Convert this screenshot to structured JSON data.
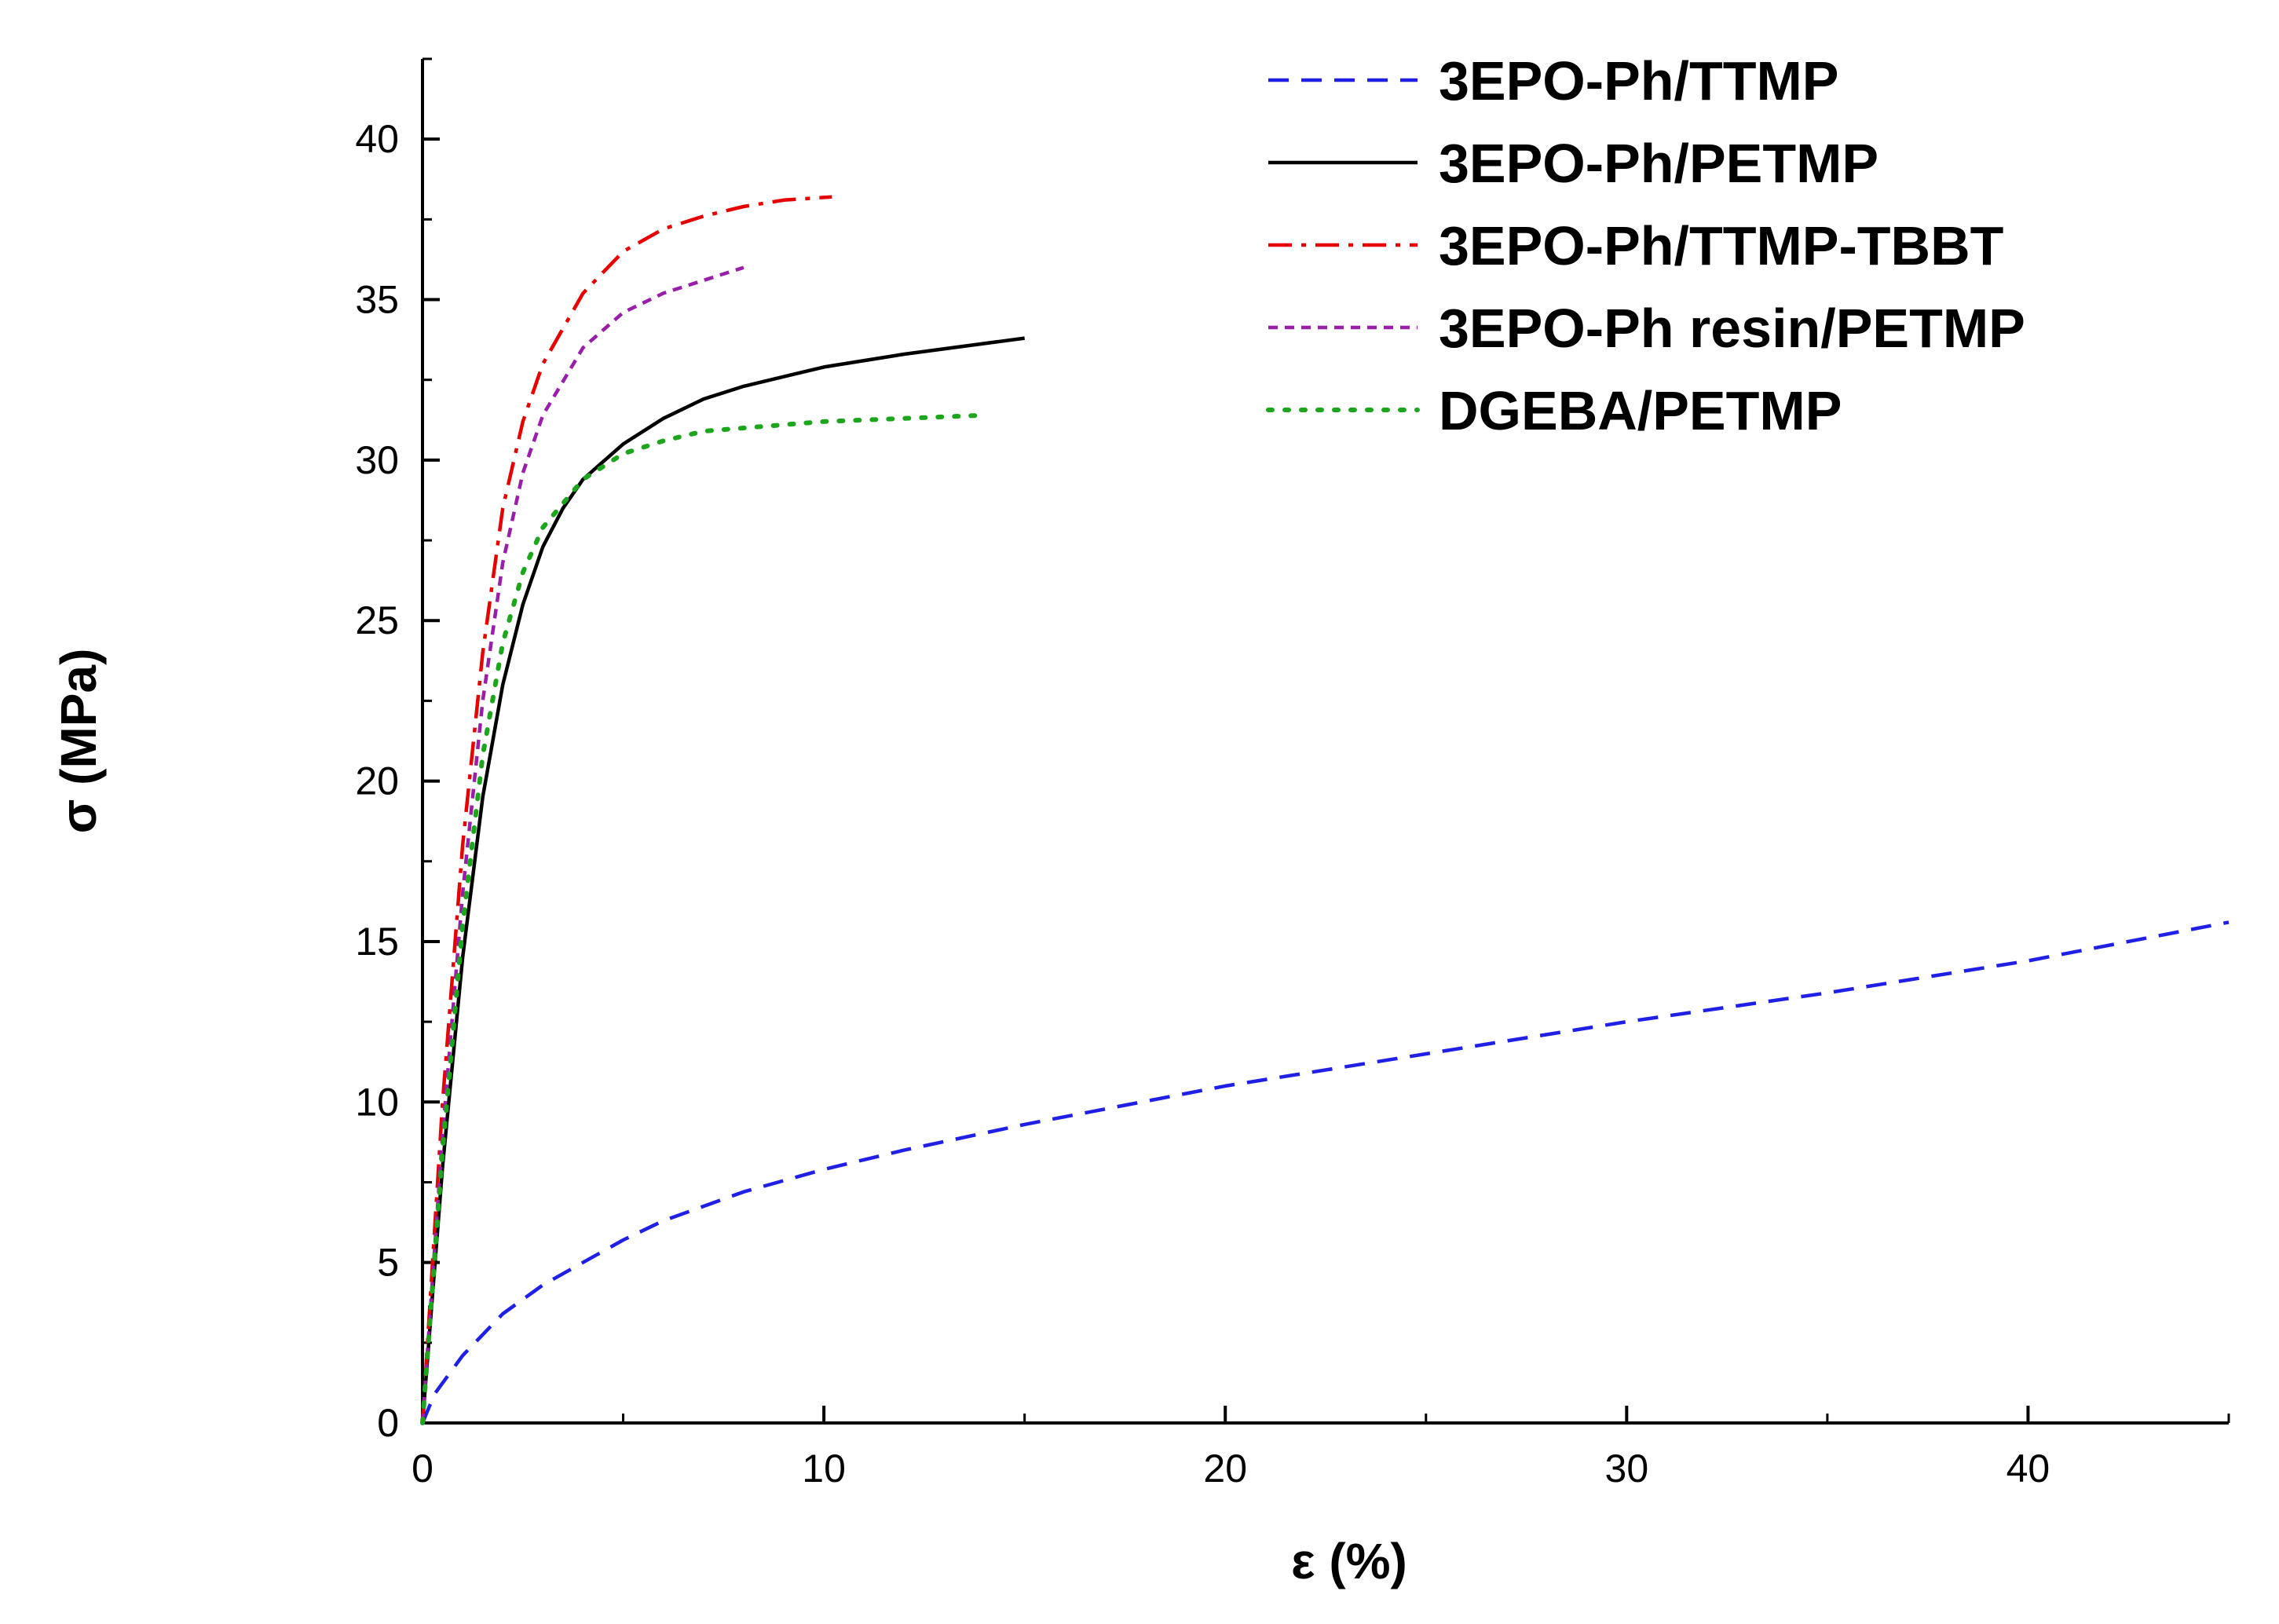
{
  "chart_data": {
    "type": "line",
    "title": "",
    "xlabel": "ε (%)",
    "ylabel": "σ (MPa)",
    "xlim": [
      0,
      45
    ],
    "ylim": [
      0,
      42.5
    ],
    "x_ticks": [
      0,
      10,
      20,
      30,
      40
    ],
    "x_tick_labels": [
      "0",
      "10",
      "20",
      "30",
      "40"
    ],
    "x_minor_ticks": [
      5,
      15,
      25,
      35,
      45
    ],
    "y_ticks": [
      0,
      5,
      10,
      15,
      20,
      25,
      30,
      35,
      40
    ],
    "y_tick_labels": [
      "0",
      "5",
      "10",
      "15",
      "20",
      "25",
      "30",
      "35",
      "40"
    ],
    "y_minor_ticks": [
      2.5,
      7.5,
      12.5,
      17.5,
      22.5,
      27.5,
      32.5,
      37.5,
      42.5
    ],
    "grid": false,
    "legend_position": "top-right",
    "series": [
      {
        "name": "3EPO-Ph/TTMP",
        "color": "#1f1fe6",
        "style": "dashed",
        "x": [
          0,
          0.3,
          1,
          2,
          3,
          4,
          5,
          6,
          8,
          10,
          12,
          15,
          20,
          25,
          30,
          35,
          40,
          45
        ],
        "y": [
          0,
          0.9,
          2.1,
          3.4,
          4.3,
          5.0,
          5.7,
          6.3,
          7.2,
          7.9,
          8.5,
          9.3,
          10.5,
          11.5,
          12.5,
          13.4,
          14.4,
          15.6
        ]
      },
      {
        "name": "3EPO-Ph/PETMP",
        "color": "#000000",
        "style": "solid",
        "x": [
          0,
          0.5,
          1,
          1.5,
          2,
          2.5,
          3,
          3.5,
          4,
          5,
          6,
          7,
          8,
          10,
          12,
          15
        ],
        "y": [
          0,
          8.0,
          14.5,
          19.5,
          23.0,
          25.5,
          27.3,
          28.5,
          29.4,
          30.5,
          31.3,
          31.9,
          32.3,
          32.9,
          33.3,
          33.8
        ]
      },
      {
        "name": "3EPO-Ph/TTMP-TBBT",
        "color": "#e60000",
        "style": "dashdot",
        "x": [
          0,
          0.5,
          1,
          1.5,
          2,
          2.5,
          3,
          4,
          5,
          6,
          7,
          8,
          9,
          10.2
        ],
        "y": [
          0,
          10.0,
          18.0,
          24.0,
          28.5,
          31.2,
          33.0,
          35.2,
          36.5,
          37.2,
          37.6,
          37.9,
          38.1,
          38.2
        ]
      },
      {
        "name": "3EPO-Ph resin/PETMP",
        "color": "#9a1fa8",
        "style": "short-dashed",
        "x": [
          0,
          0.5,
          1,
          1.5,
          2,
          2.5,
          3,
          4,
          5,
          6,
          7,
          8
        ],
        "y": [
          0,
          9.0,
          16.5,
          22.5,
          26.8,
          29.6,
          31.4,
          33.5,
          34.6,
          35.2,
          35.6,
          36.0
        ]
      },
      {
        "name": "DGEBA/PETMP",
        "color": "#1ea51e",
        "style": "dotted",
        "x": [
          0,
          0.5,
          1,
          1.5,
          2,
          2.5,
          3,
          4,
          5,
          6,
          7,
          8,
          10,
          12,
          14
        ],
        "y": [
          0,
          8.5,
          15.5,
          20.8,
          24.3,
          26.5,
          27.9,
          29.4,
          30.2,
          30.6,
          30.9,
          31.0,
          31.2,
          31.3,
          31.4
        ]
      }
    ]
  }
}
